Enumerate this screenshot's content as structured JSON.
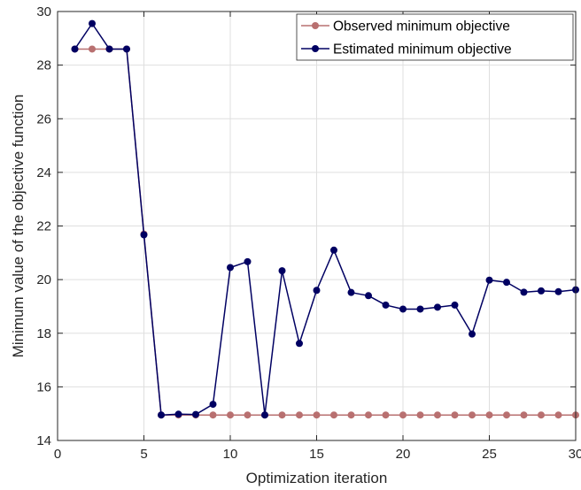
{
  "chart_data": {
    "type": "line",
    "title": "",
    "xlabel": "Optimization iteration",
    "ylabel": "Minimum value of the objective function",
    "xlim": [
      0,
      30
    ],
    "ylim": [
      14,
      30
    ],
    "xticks": [
      0,
      5,
      10,
      15,
      20,
      25,
      30
    ],
    "yticks": [
      14,
      16,
      18,
      20,
      22,
      24,
      26,
      28,
      30
    ],
    "grid": true,
    "legend_position": "top-right",
    "x": [
      1,
      2,
      3,
      4,
      5,
      6,
      7,
      8,
      9,
      10,
      11,
      12,
      13,
      14,
      15,
      16,
      17,
      18,
      19,
      20,
      21,
      22,
      23,
      24,
      25,
      26,
      27,
      28,
      29,
      30
    ],
    "series": [
      {
        "name": "Observed minimum objective",
        "color": "#b87070",
        "values": [
          28.6,
          28.6,
          28.6,
          28.6,
          21.7,
          14.95,
          14.95,
          14.95,
          14.95,
          14.95,
          14.95,
          14.95,
          14.95,
          14.95,
          14.95,
          14.95,
          14.95,
          14.95,
          14.95,
          14.95,
          14.95,
          14.95,
          14.95,
          14.95,
          14.95,
          14.95,
          14.95,
          14.95,
          14.95,
          14.95
        ]
      },
      {
        "name": "Estimated minimum objective",
        "color": "#000062",
        "values": [
          28.6,
          29.55,
          28.6,
          28.6,
          21.67,
          14.95,
          14.98,
          14.97,
          15.35,
          20.45,
          20.67,
          14.95,
          20.33,
          17.62,
          19.6,
          21.1,
          19.52,
          19.4,
          19.05,
          18.9,
          18.9,
          18.97,
          19.05,
          17.97,
          19.98,
          19.9,
          19.53,
          19.58,
          19.55,
          19.62
        ]
      }
    ]
  }
}
